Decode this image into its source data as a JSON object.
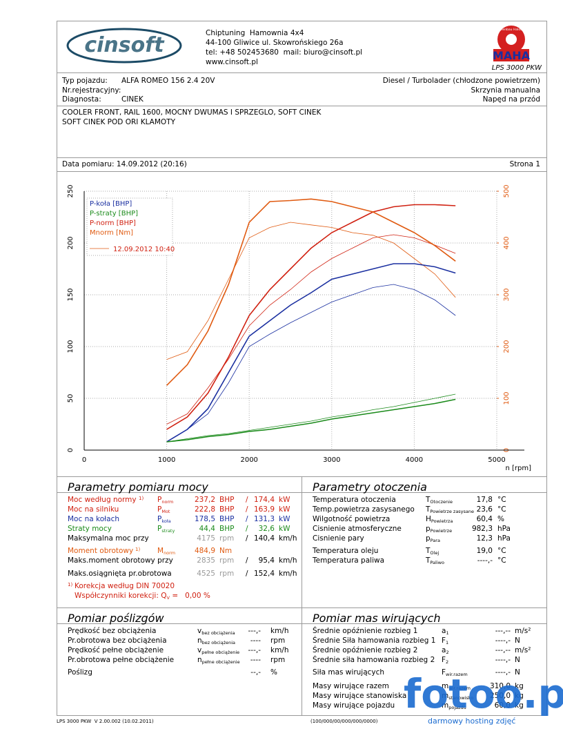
{
  "header": {
    "lines": [
      "Chiptuning  Hamownia 4x4",
      "44-100 Gliwice ul. Skowrońskiego 26a",
      "tel: +48 502453680  mail: biuro@cinsoft.pl",
      "www.cinsoft.pl"
    ],
    "logo": "cinsoft",
    "brand": "MAHA",
    "brand_ring": "Maschinenbau Haldenwang",
    "model": "LPS 3000 PKW"
  },
  "vehicle": {
    "left": [
      {
        "label": "Typ pojazdu:",
        "value": "ALFA ROMEO 156 2.4 20V"
      },
      {
        "label": "Nr.rejestracyjny:"
      },
      {
        "label": "Diagnosta:",
        "value": "CINEK"
      }
    ],
    "right": [
      "Diesel / Turbolader (chłodzone powietrzem)",
      "Skrzynia manualna",
      "Napęd na przód"
    ]
  },
  "notes": [
    "COOLER FRONT, RAIL 1600, MOCNY DWUMAS I SPRZEGLO, SOFT CINEK",
    "SOFT CINEK POD ORI KLAMOTY"
  ],
  "date": "Data pomiaru: 14.09.2012 (20:16)",
  "page": "Strona 1",
  "chart_data": {
    "type": "line",
    "xlabel": "n [rpm]",
    "x": [
      1000,
      1250,
      1500,
      1750,
      2000,
      2250,
      2500,
      2750,
      3000,
      3250,
      3500,
      3750,
      4000,
      4250,
      4500
    ],
    "xlim": [
      0,
      5000
    ],
    "xticks": [
      0,
      1000,
      2000,
      3000,
      4000,
      5000
    ],
    "ylim": [
      0,
      250
    ],
    "yticks": [
      0,
      50,
      100,
      150,
      200,
      250
    ],
    "y2lim": [
      0,
      500
    ],
    "y2ticks": [
      0,
      100,
      200,
      300,
      400,
      500
    ],
    "y2color": "#e05a10",
    "grid": true,
    "legend": "top-left",
    "series": [
      {
        "name": "P-koła [BHP]",
        "color": "#1a2fa0",
        "values": [
          8,
          20,
          40,
          75,
          110,
          125,
          140,
          152,
          165,
          170,
          175,
          180,
          180,
          177,
          171
        ]
      },
      {
        "name": "P-straty [BHP]",
        "color": "#1a8a1a",
        "values": [
          8,
          10,
          13,
          15,
          18,
          20,
          23,
          26,
          30,
          33,
          36,
          39,
          42,
          45,
          49
        ]
      },
      {
        "name": "P-norm [BHP]",
        "color": "#d02010",
        "values": [
          20,
          32,
          55,
          90,
          130,
          155,
          175,
          195,
          210,
          220,
          230,
          235,
          237,
          237,
          236
        ]
      },
      {
        "name": "Mnorm [Nm]",
        "color": "#e05a10",
        "axis": "y2",
        "values": [
          125,
          165,
          230,
          320,
          440,
          480,
          482,
          485,
          480,
          470,
          460,
          440,
          420,
          395,
          365
        ]
      }
    ],
    "comparison": {
      "label": "12.09.2012 10:40",
      "color": "#e05a10",
      "series": [
        {
          "color": "#1a2fa0",
          "values": [
            8,
            20,
            35,
            65,
            100,
            112,
            123,
            133,
            143,
            150,
            157,
            160,
            155,
            145,
            130
          ]
        },
        {
          "color": "#1a8a1a",
          "values": [
            8,
            11,
            14,
            16,
            19,
            22,
            25,
            28,
            32,
            35,
            39,
            42,
            46,
            50,
            54
          ]
        },
        {
          "color": "#d02010",
          "values": [
            25,
            35,
            60,
            88,
            120,
            140,
            155,
            172,
            185,
            195,
            205,
            208,
            205,
            198,
            190
          ]
        },
        {
          "color": "#e05a10",
          "axis": "y2",
          "values": [
            175,
            190,
            250,
            330,
            410,
            430,
            440,
            435,
            430,
            420,
            415,
            400,
            370,
            340,
            295
          ]
        }
      ]
    }
  },
  "power": {
    "title": "Parametry pomiaru mocy",
    "rows": [
      {
        "label": "Moc według normy",
        "mark": "1)",
        "symbol": "P",
        "sub": "norm",
        "value": "237,2",
        "unit": "BHP",
        "sep": "/",
        "value2": "174,4",
        "unit2": "kW",
        "color": "#d02010"
      },
      {
        "label": "Moc na silniku",
        "symbol": "P",
        "sub": "Mot",
        "value": "222,8",
        "unit": "BHP",
        "sep": "/",
        "value2": "163,9",
        "unit2": "kW",
        "color": "#d02010"
      },
      {
        "label": "Moc na kołach",
        "symbol": "P",
        "sub": "koła",
        "value": "178,5",
        "unit": "BHP",
        "sep": "/",
        "value2": "131,3",
        "unit2": "kW",
        "color": "#1a2fa0"
      },
      {
        "label": "Straty mocy",
        "symbol": "P",
        "sub": "straty",
        "value": "44,4",
        "unit": "BHP",
        "sep": "/",
        "value2": "32,6",
        "unit2": "kW",
        "color": "#1a8a1a"
      },
      {
        "label": "Maksymalna moc przy",
        "value": "4175",
        "unit": "rpm",
        "sep": "/",
        "value2": "140,4",
        "unit2": "km/h",
        "color": "#000",
        "value_color": "#999"
      },
      {
        "label": "Moment obrotowy",
        "mark": "1)",
        "symbol": "M",
        "sub": "norm",
        "value": "484,9",
        "unit": "Nm",
        "color": "#e05a10"
      },
      {
        "label": "Maks.moment obrotowy przy",
        "value": "2835",
        "unit": "rpm",
        "sep": "/",
        "value2": "95,4",
        "unit2": "km/h",
        "color": "#000",
        "value_color": "#999"
      },
      {
        "label": "Maks.osiągnięta pr.obrotowa",
        "value": "4525",
        "unit": "rpm",
        "sep": "/",
        "value2": "152,4",
        "unit2": "km/h",
        "color": "#000",
        "value_color": "#999"
      }
    ],
    "footnote": {
      "mark": "1)",
      "text": "Korekcja według DIN 70020"
    },
    "correction": {
      "text": "Współczynniki korekcji: Q",
      "sub": "V",
      "value": " =   0,00 %"
    }
  },
  "environment": {
    "title": "Parametry otoczenia",
    "rows": [
      {
        "label": "Temperatura otoczenia",
        "symbol": "T",
        "sub": "Otoczenie",
        "value": "17,8",
        "unit": "°C"
      },
      {
        "label": "Temp.powietrza zasysanego",
        "symbol": "T",
        "sub": "Powietrze zasysane",
        "value": "23,6",
        "unit": "°C"
      },
      {
        "label": "Wilgotność powietrza",
        "symbol": "H",
        "sub": "Powietrza",
        "value": "60,4",
        "unit": "%"
      },
      {
        "label": "Cisnienie atmosferyczne",
        "symbol": "p",
        "sub": "Powietrze",
        "value": "982,3",
        "unit": "hPa"
      },
      {
        "label": "Cisnienie pary",
        "symbol": "p",
        "sub": "Para",
        "value": "12,3",
        "unit": "hPa"
      },
      {
        "label": "Temperatura oleju",
        "symbol": "T",
        "sub": "Olej",
        "value": "19,0",
        "unit": "°C"
      },
      {
        "label": "Temperatura paliwa",
        "symbol": "T",
        "sub": "Paliwo",
        "value": "----,-",
        "unit": "°C"
      }
    ]
  },
  "slip": {
    "title": "Pomiar poślizgów",
    "rows": [
      {
        "label": "Prędkość bez obciążenia",
        "symbol": "v",
        "sub": "bez obciążenia",
        "value": "---,-",
        "unit": "km/h"
      },
      {
        "label": "Pr.obrotowa bez obciążenia",
        "symbol": "n",
        "sub": "bez obciążenia",
        "value": "----",
        "unit": "rpm"
      },
      {
        "label": "Prędkość pełne obciążenie",
        "symbol": "v",
        "sub": "pełne obciążenie",
        "value": "---,-",
        "unit": "km/h"
      },
      {
        "label": "Pr.obrotowa pełne obciążenie",
        "symbol": "n",
        "sub": "pełne obciążenie",
        "value": "----",
        "unit": "rpm"
      },
      {
        "label": "Poślizg",
        "value": "--,-",
        "unit": "%"
      }
    ]
  },
  "masses": {
    "title": "Pomiar mas wirujących",
    "rows": [
      {
        "label": "Średnie opóźnienie rozbieg 1",
        "symbol": "a",
        "sub": "1",
        "value": "---,--",
        "unit": "m/s²"
      },
      {
        "label": "Średnie Siła hamowania rozbieg 1",
        "symbol": "F",
        "sub": "1",
        "value": "----,-",
        "unit": "N"
      },
      {
        "label": "Średnie opóźnienie rozbieg 2",
        "symbol": "a",
        "sub": "2",
        "value": "---,--",
        "unit": "m/s²"
      },
      {
        "label": "Średnie siła hamowania rozbieg 2",
        "symbol": "F",
        "sub": "2",
        "value": "----,-",
        "unit": "N"
      },
      {
        "label": "Siła mas wirujących",
        "symbol": "F",
        "sub": "wir.razem",
        "value": "----,-",
        "unit": "N"
      },
      {
        "label": "Masy wirujące razem",
        "symbol": "m",
        "sub": "wir.razem",
        "value": "310,0",
        "unit": "kg"
      },
      {
        "label": "Masy wirujące stanowiska",
        "symbol": "m",
        "sub": "stanowisko",
        "value": "250,0",
        "unit": "kg"
      },
      {
        "label": "Masy wirujące pojazdu",
        "symbol": "m",
        "sub": "pojazdu",
        "value": "60,0",
        "unit": "kg"
      }
    ]
  },
  "footer": {
    "left": "LPS 3000 PKW  V 2.00.002 (10.02.2011)",
    "middle": "(100/000/00/000/000/0000)"
  },
  "watermark": {
    "text": "fotoo.pl",
    "caption": "darmowy hosting zdjęć"
  }
}
